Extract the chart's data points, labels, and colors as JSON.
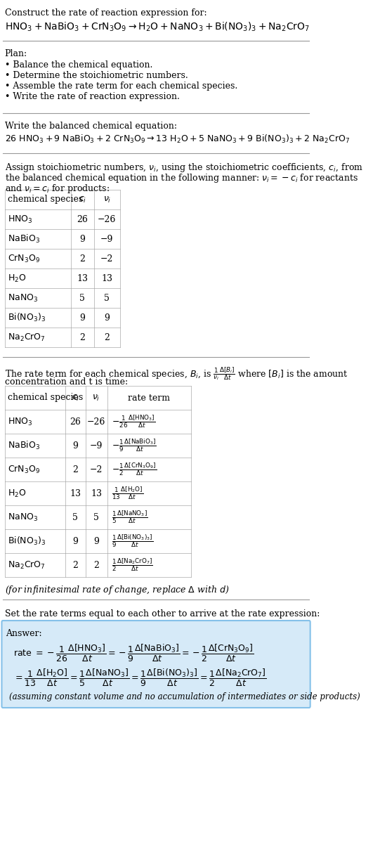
{
  "title_line": "Construct the rate of reaction expression for:",
  "reaction_unbalanced": "HNO_3 + NaBiO_3 + CrN_3O_9 → H_2O + NaNO_3 + Bi(NO_3)_3 + Na_2CrO_7",
  "plan_header": "Plan:",
  "plan_items": [
    "• Balance the chemical equation.",
    "• Determine the stoichiometric numbers.",
    "• Assemble the rate term for each chemical species.",
    "• Write the rate of reaction expression."
  ],
  "balanced_header": "Write the balanced chemical equation:",
  "balanced_eq": "26 HNO_3 + 9 NaBiO_3 + 2 CrN_3O_9 → 13 H_2O + 5 NaNO_3 + 9 Bi(NO_3)_3 + 2 Na_2CrO_7",
  "stoich_header1": "Assign stoichiometric numbers, ν_i, using the stoichiometric coefficients, c_i, from",
  "stoich_header2": "the balanced chemical equation in the following manner: ν_i = −c_i for reactants",
  "stoich_header3": "and ν_i = c_i for products:",
  "table1_cols": [
    "chemical species",
    "c_i",
    "ν_i"
  ],
  "table1_rows": [
    [
      "HNO_3",
      "26",
      "−26"
    ],
    [
      "NaBiO_3",
      "9",
      "−9"
    ],
    [
      "CrN_3O_9",
      "2",
      "−2"
    ],
    [
      "H_2O",
      "13",
      "13"
    ],
    [
      "NaNO_3",
      "5",
      "5"
    ],
    [
      "Bi(NO_3)_3",
      "9",
      "9"
    ],
    [
      "Na_2CrO_7",
      "2",
      "2"
    ]
  ],
  "rate_term_header1": "The rate term for each chemical species, B_i, is",
  "rate_term_header2": "concentration and t is time:",
  "table2_cols": [
    "chemical species",
    "c_i",
    "ν_i",
    "rate term"
  ],
  "table2_rows": [
    [
      "HNO_3",
      "26",
      "−26",
      "-\\frac{1}{26}\\frac{\\Delta[HNO_3]}{\\Delta t}"
    ],
    [
      "NaBiO_3",
      "9",
      "−9",
      "-\\frac{1}{9}\\frac{\\Delta[NaBiO_3]}{\\Delta t}"
    ],
    [
      "CrN_3O_9",
      "2",
      "−2",
      "-\\frac{1}{2}\\frac{\\Delta[CrN_3O_9]}{\\Delta t}"
    ],
    [
      "H_2O",
      "13",
      "13",
      "\\frac{1}{13}\\frac{\\Delta[H_2O]}{\\Delta t}"
    ],
    [
      "NaNO_3",
      "5",
      "5",
      "\\frac{1}{5}\\frac{\\Delta[NaNO_3]}{\\Delta t}"
    ],
    [
      "Bi(NO_3)_3",
      "9",
      "9",
      "\\frac{1}{9}\\frac{\\Delta[Bi(NO_3)_3]}{\\Delta t}"
    ],
    [
      "Na_2CrO_7",
      "2",
      "2",
      "\\frac{1}{2}\\frac{\\Delta[Na_2CrO_7]}{\\Delta t}"
    ]
  ],
  "infinitesimal_note": "(for infinitesimal rate of change, replace Δ with d)",
  "set_rate_text": "Set the rate terms equal to each other to arrive at the rate expression:",
  "answer_box_color": "#d6eaf8",
  "answer_border_color": "#85c1e9",
  "bg_color": "#ffffff",
  "text_color": "#000000",
  "font_size": 9,
  "answer_line1": "rate = $-\\frac{1}{26}\\frac{\\Delta[HNO_3]}{\\Delta t}$ = $-\\frac{1}{9}\\frac{\\Delta[NaBiO_3]}{\\Delta t}$ = $-\\frac{1}{2}\\frac{\\Delta[CrN_3O_9]}{\\Delta t}$",
  "answer_line2": "= $\\frac{1}{13}\\frac{\\Delta[H_2O]}{\\Delta t}$ = $\\frac{1}{5}\\frac{\\Delta[NaNO_3]}{\\Delta t}$ = $\\frac{1}{9}\\frac{\\Delta[Bi(NO_3)_3]}{\\Delta t}$ = $\\frac{1}{2}\\frac{\\Delta[Na_2CrO_7]}{\\Delta t}$",
  "answer_note": "(assuming constant volume and no accumulation of intermediates or side products)"
}
